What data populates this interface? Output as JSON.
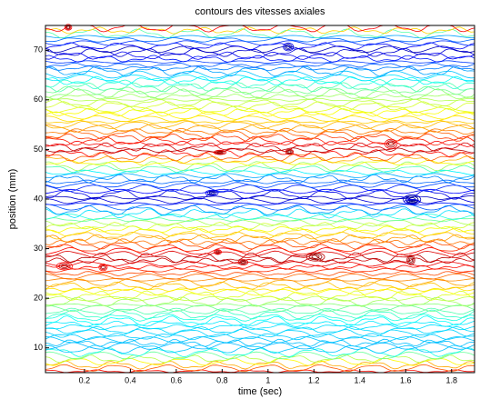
{
  "chart_data": {
    "type": "contour",
    "title": "contours des vitesses axiales",
    "x_label": "time (sec)",
    "y_label": "position (mm)",
    "xlim": [
      0.03,
      1.9
    ],
    "xticks": [
      0.2,
      0.4,
      0.6,
      0.8,
      1,
      1.2,
      1.4,
      1.6,
      1.8
    ],
    "ylim": [
      5,
      75
    ],
    "yticks": [
      10,
      20,
      30,
      40,
      50,
      60,
      70
    ]
  }
}
